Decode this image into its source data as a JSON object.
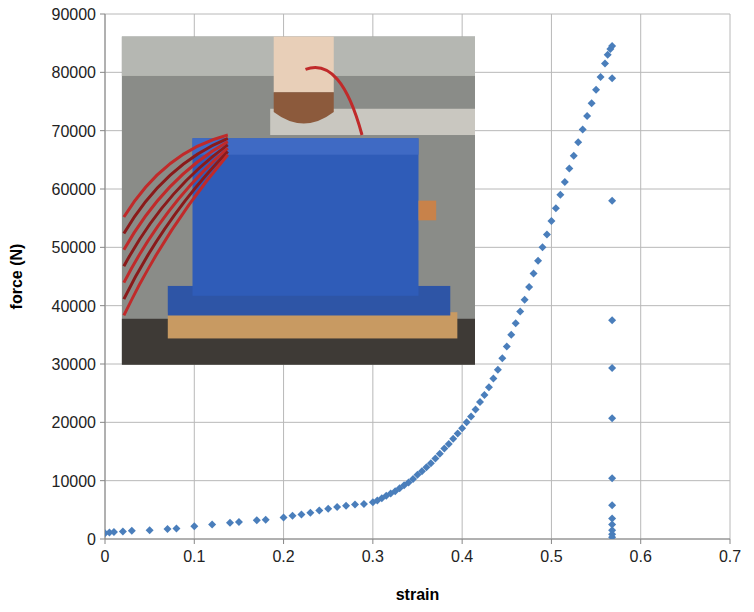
{
  "chart_data": {
    "type": "scatter",
    "x_label": "strain",
    "y_label": "force (N)",
    "x": [
      0,
      0.005,
      0.01,
      0.02,
      0.03,
      0.05,
      0.07,
      0.08,
      0.1,
      0.12,
      0.14,
      0.15,
      0.17,
      0.18,
      0.2,
      0.21,
      0.22,
      0.23,
      0.24,
      0.25,
      0.26,
      0.27,
      0.28,
      0.29,
      0.3,
      0.305,
      0.31,
      0.315,
      0.32,
      0.325,
      0.33,
      0.335,
      0.34,
      0.345,
      0.35,
      0.355,
      0.36,
      0.365,
      0.37,
      0.375,
      0.38,
      0.385,
      0.39,
      0.395,
      0.4,
      0.405,
      0.41,
      0.415,
      0.42,
      0.425,
      0.43,
      0.435,
      0.44,
      0.445,
      0.45,
      0.455,
      0.46,
      0.465,
      0.47,
      0.475,
      0.48,
      0.485,
      0.49,
      0.495,
      0.5,
      0.505,
      0.51,
      0.515,
      0.52,
      0.525,
      0.53,
      0.535,
      0.54,
      0.545,
      0.55,
      0.555,
      0.56,
      0.563,
      0.566,
      0.568,
      0.568,
      0.568,
      0.568,
      0.568,
      0.568,
      0.568,
      0.568,
      0.568,
      0.568,
      0.568,
      0.568,
      0.568
    ],
    "values": [
      1000,
      1100,
      1200,
      1300,
      1400,
      1500,
      1700,
      1800,
      2200,
      2500,
      2800,
      2900,
      3200,
      3300,
      3700,
      4000,
      4200,
      4500,
      4900,
      5200,
      5500,
      5700,
      5900,
      6000,
      6300,
      6600,
      7000,
      7400,
      7800,
      8200,
      8700,
      9200,
      9700,
      10300,
      11000,
      11600,
      12300,
      13000,
      13800,
      14600,
      15500,
      16300,
      17200,
      18100,
      19000,
      20000,
      21000,
      22200,
      23500,
      24700,
      26000,
      27500,
      29000,
      31000,
      33000,
      35000,
      37000,
      39000,
      41000,
      43200,
      45500,
      47700,
      50000,
      52200,
      54500,
      56700,
      59000,
      61200,
      63500,
      65700,
      68000,
      70200,
      72500,
      74700,
      77000,
      79200,
      81500,
      83000,
      84000,
      84500,
      79000,
      58000,
      37500,
      29300,
      20700,
      10400,
      5800,
      3500,
      2500,
      1500,
      800,
      300
    ],
    "color": "#4a7ebb",
    "marker": "diamond",
    "xlim": [
      0,
      0.7
    ],
    "xticks": [
      0,
      0.1,
      0.2,
      0.3,
      0.4,
      0.5,
      0.6,
      0.7
    ],
    "ylim": [
      0,
      90000
    ],
    "yticks": [
      0,
      10000,
      20000,
      30000,
      40000,
      50000,
      60000,
      70000,
      80000,
      90000
    ],
    "grid": true
  }
}
